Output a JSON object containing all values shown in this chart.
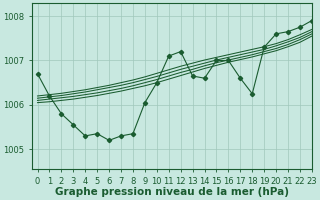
{
  "background_color": "#c8e8e0",
  "grid_color": "#a0c8bc",
  "line_color": "#1a5c30",
  "xlabel": "Graphe pression niveau de la mer (hPa)",
  "xlabel_fontsize": 7.5,
  "tick_fontsize": 6,
  "yticks": [
    1005,
    1006,
    1007,
    1008
  ],
  "xlim": [
    -0.5,
    23
  ],
  "ylim": [
    1004.55,
    1008.3
  ],
  "main_data": [
    1006.7,
    1006.2,
    1005.8,
    1005.55,
    1005.3,
    1005.35,
    1005.2,
    1005.3,
    1005.35,
    1006.05,
    1006.5,
    1007.1,
    1007.2,
    1006.65,
    1006.6,
    1007.0,
    1007.0,
    1006.6,
    1006.25,
    1007.3,
    1007.6,
    1007.65,
    1007.75,
    1007.9
  ],
  "smooth1": [
    1006.05,
    1006.07,
    1006.1,
    1006.13,
    1006.17,
    1006.21,
    1006.26,
    1006.31,
    1006.37,
    1006.43,
    1006.5,
    1006.58,
    1006.66,
    1006.74,
    1006.82,
    1006.89,
    1006.96,
    1007.02,
    1007.08,
    1007.15,
    1007.22,
    1007.31,
    1007.41,
    1007.55
  ],
  "smooth2": [
    1006.1,
    1006.13,
    1006.16,
    1006.19,
    1006.23,
    1006.27,
    1006.32,
    1006.37,
    1006.43,
    1006.5,
    1006.57,
    1006.65,
    1006.73,
    1006.8,
    1006.88,
    1006.95,
    1007.01,
    1007.07,
    1007.13,
    1007.2,
    1007.27,
    1007.36,
    1007.47,
    1007.6
  ],
  "smooth3": [
    1006.15,
    1006.18,
    1006.21,
    1006.25,
    1006.29,
    1006.34,
    1006.39,
    1006.44,
    1006.5,
    1006.57,
    1006.64,
    1006.72,
    1006.8,
    1006.87,
    1006.94,
    1007.01,
    1007.07,
    1007.13,
    1007.19,
    1007.25,
    1007.33,
    1007.42,
    1007.52,
    1007.65
  ],
  "smooth4": [
    1006.2,
    1006.23,
    1006.26,
    1006.3,
    1006.34,
    1006.39,
    1006.44,
    1006.5,
    1006.56,
    1006.63,
    1006.71,
    1006.79,
    1006.87,
    1006.94,
    1007.01,
    1007.07,
    1007.13,
    1007.19,
    1007.25,
    1007.31,
    1007.38,
    1007.47,
    1007.58,
    1007.7
  ]
}
